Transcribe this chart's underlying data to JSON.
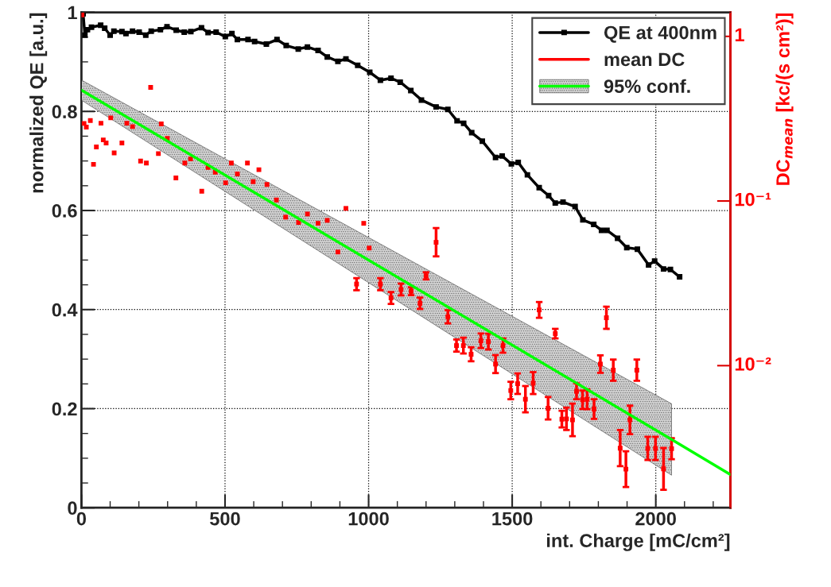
{
  "chart_data": {
    "type": "line",
    "xlabel": "int. Charge [mC/cm²]",
    "ylabel": "normalized QE [a.u.]",
    "y2label": "DC$_{mean}$ [kc/(s cm²)]",
    "xlim": [
      0,
      2260
    ],
    "xticks": [
      0,
      500,
      1000,
      1500,
      2000
    ],
    "ylim": [
      0,
      1
    ],
    "yticks": [
      0,
      0.2,
      0.4,
      0.6,
      0.8,
      1
    ],
    "y2lim": [
      0.00137,
      1.4
    ],
    "y2ticks": [
      1,
      {
        "value": 0.1,
        "label": "10⁻¹"
      },
      {
        "value": 0.01,
        "label": "10⁻²"
      }
    ],
    "log": "y2",
    "grid": true,
    "legend": "top right",
    "series": [
      {
        "name": "QE at 400nm",
        "color": "#000000",
        "marker": "square",
        "x": [
          6,
          12,
          21,
          35,
          67,
          81,
          100,
          113,
          141,
          155,
          178,
          201,
          224,
          243,
          275,
          298,
          330,
          358,
          381,
          418,
          441,
          469,
          501,
          524,
          543,
          580,
          603,
          644,
          681,
          713,
          755,
          787,
          824,
          856,
          893,
          921,
          962,
          1004,
          1041,
          1078,
          1110,
          1147,
          1184,
          1235,
          1276,
          1308,
          1331,
          1359,
          1396,
          1442,
          1465,
          1497,
          1521,
          1553,
          1594,
          1627,
          1650,
          1677,
          1719,
          1746,
          1784,
          1811,
          1830,
          1867,
          1899,
          1936,
          1975,
          1996,
          2027,
          2051,
          2083
        ],
        "values": [
          0.997,
          0.954,
          0.965,
          0.97,
          0.974,
          0.968,
          0.954,
          0.962,
          0.961,
          0.957,
          0.962,
          0.96,
          0.954,
          0.962,
          0.965,
          0.971,
          0.964,
          0.96,
          0.961,
          0.969,
          0.959,
          0.96,
          0.951,
          0.957,
          0.945,
          0.945,
          0.941,
          0.936,
          0.945,
          0.933,
          0.926,
          0.93,
          0.923,
          0.91,
          0.901,
          0.906,
          0.893,
          0.879,
          0.863,
          0.867,
          0.859,
          0.842,
          0.823,
          0.809,
          0.804,
          0.781,
          0.776,
          0.757,
          0.74,
          0.707,
          0.71,
          0.694,
          0.697,
          0.672,
          0.646,
          0.63,
          0.615,
          0.617,
          0.608,
          0.581,
          0.572,
          0.56,
          0.56,
          0.544,
          0.525,
          0.522,
          0.49,
          0.498,
          0.482,
          0.481,
          0.466
        ]
      },
      {
        "name": "mean DC",
        "type": "scatter",
        "axis": "y2",
        "color": "#ff0000",
        "marker": "square",
        "x": [
          2,
          9,
          17,
          31,
          42,
          52,
          68,
          76,
          86,
          102,
          114,
          141,
          158,
          178,
          206,
          226,
          241,
          268,
          278,
          299,
          329,
          360,
          380,
          419,
          441,
          466,
          502,
          522,
          543,
          578,
          598,
          618,
          646,
          679,
          711,
          756,
          787,
          824,
          856,
          893,
          921,
          958,
          983,
          1002,
          1041,
          1078,
          1113,
          1148,
          1179,
          1200,
          1235,
          1276,
          1306,
          1330,
          1357,
          1391,
          1417,
          1442,
          1468,
          1495,
          1519,
          1546,
          1573,
          1594,
          1625,
          1650,
          1673,
          1689,
          1710,
          1724,
          1745,
          1761,
          1785,
          1807,
          1828,
          1852,
          1876,
          1896,
          1910,
          1934,
          1972,
          1999,
          2027,
          2055
        ],
        "values": [
          1.35,
          0.296,
          0.281,
          0.308,
          0.167,
          0.213,
          0.297,
          0.235,
          0.225,
          0.32,
          0.196,
          0.225,
          0.297,
          0.283,
          0.175,
          0.17,
          0.49,
          0.194,
          0.294,
          0.24,
          0.138,
          0.17,
          0.18,
          0.1146,
          0.16,
          0.1497,
          0.129,
          0.17,
          0.146,
          0.17,
          0.131,
          0.155,
          0.126,
          0.1015,
          0.0798,
          0.0741,
          0.0834,
          0.0732,
          0.0763,
          0.049,
          0.0902,
          0.0313,
          0.0732,
          0.0518,
          0.0313,
          0.0258,
          0.029,
          0.0283,
          0.0239,
          0.0351,
          0.0561,
          0.0198,
          0.01324,
          0.01324,
          0.01172,
          0.01416,
          0.014,
          0.01022,
          0.01324,
          0.00706,
          0.00777,
          0.00625,
          0.00783,
          0.0218,
          0.00551,
          0.01565,
          0.00473,
          0.00475,
          0.00468,
          0.00698,
          0.0062,
          0.00625,
          0.00545,
          0.01022,
          0.01954,
          0.00939,
          0.00315,
          0.00235,
          0.00468,
          0.00939,
          0.00314,
          0.00314,
          0.00236,
          0.00313
        ],
        "errors": [
          null,
          null,
          null,
          null,
          null,
          null,
          null,
          null,
          null,
          null,
          null,
          null,
          null,
          null,
          null,
          null,
          null,
          null,
          null,
          null,
          null,
          null,
          null,
          null,
          null,
          null,
          null,
          null,
          null,
          null,
          null,
          null,
          null,
          null,
          null,
          null,
          null,
          null,
          null,
          null,
          null,
          [
            0.0287,
            0.034
          ],
          null,
          null,
          [
            0.0287,
            0.034
          ],
          [
            0.0237,
            0.028
          ],
          [
            0.0267,
            0.0315
          ],
          [
            0.0268,
            0.0299
          ],
          [
            0.0221,
            0.0259
          ],
          [
            0.0334,
            0.0369
          ],
          [
            0.0461,
            0.0685
          ],
          [
            0.01805,
            0.02172
          ],
          [
            0.01216,
            0.01442
          ],
          [
            0.01185,
            0.01479
          ],
          [
            0.01063,
            0.01293
          ],
          [
            0.01279,
            0.01568
          ],
          [
            0.01253,
            0.01564
          ],
          [
            0.00901,
            0.01159
          ],
          [
            0.01198,
            0.01463
          ],
          [
            0.00625,
            0.00798
          ],
          [
            0.00673,
            0.00897
          ],
          [
            0.0052,
            0.00752
          ],
          [
            0.00672,
            0.00913
          ],
          [
            0.01952,
            0.02435
          ],
          [
            0.00471,
            0.00645
          ],
          [
            0.01464,
            0.01673
          ],
          [
            0.00421,
            0.00532
          ],
          [
            0.00406,
            0.00556
          ],
          [
            0.00373,
            0.00588
          ],
          [
            0.00625,
            0.0078
          ],
          [
            0.00545,
            0.00706
          ],
          [
            0.00544,
            0.00718
          ],
          [
            0.00475,
            0.00625
          ],
          [
            0.00904,
            0.01155
          ],
          [
            0.01673,
            0.02282
          ],
          [
            0.00809,
            0.01089
          ],
          [
            0.00245,
            0.00406
          ],
          [
            0.00183,
            0.00302
          ],
          [
            0.00383,
            0.00571
          ],
          [
            0.00809,
            0.01089
          ],
          [
            0.00267,
            0.0037
          ],
          [
            0.00267,
            0.0037
          ],
          [
            0.00176,
            0.00316
          ],
          [
            0.0027,
            0.00363
          ]
        ]
      },
      {
        "name": "95% conf.",
        "type": "line",
        "axis": "y2",
        "color": "#00ff00",
        "x": [
          0,
          2055,
          2260
        ],
        "values": [
          0.472,
          0.00356,
          0.00218
        ],
        "lower": [
          0.41,
          0.00216,
          null
        ],
        "upper": [
          0.543,
          0.00587,
          null
        ]
      }
    ]
  }
}
